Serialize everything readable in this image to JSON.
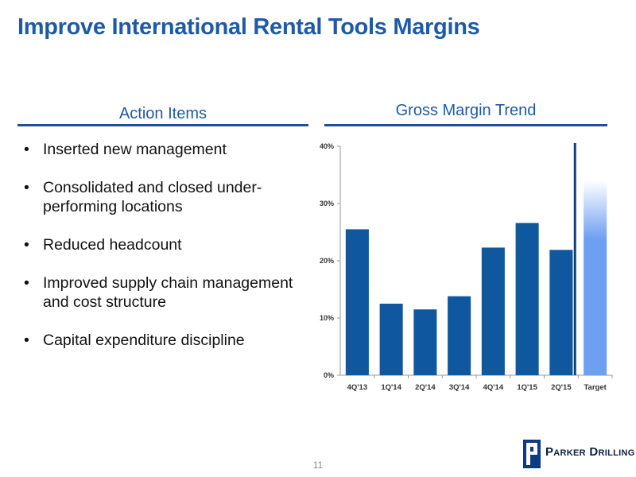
{
  "slide": {
    "title": "Improve International Rental Tools Margins",
    "page_number": "11"
  },
  "action_items": {
    "heading": "Action Items",
    "items": [
      "Inserted new management",
      "Consolidated and closed under-performing locations",
      "Reduced headcount",
      "Improved supply chain management and cost structure",
      "Capital expenditure discipline"
    ]
  },
  "gross_margin": {
    "heading": "Gross Margin Trend"
  },
  "logo": {
    "text": "Parker Drilling"
  },
  "colors": {
    "title": "#1f5aa6",
    "rule": "#1f4f8f",
    "bar": "#0f58a0",
    "target_bar": "#6f9ff0",
    "divider": "#123f78"
  },
  "chart_data": {
    "type": "bar",
    "title": "Gross Margin Trend",
    "categories": [
      "4Q'13",
      "1Q'14",
      "2Q'14",
      "3Q'14",
      "4Q'14",
      "1Q'15",
      "2Q'15",
      "Target"
    ],
    "values": [
      25.5,
      12.5,
      11.5,
      13.8,
      22.3,
      26.6,
      21.9,
      34.0
    ],
    "target_range": [
      30,
      34
    ],
    "ylim": [
      0,
      40
    ],
    "yticks": [
      "0%",
      "10%",
      "20%",
      "30%",
      "40%"
    ],
    "xlabel": "",
    "ylabel": "",
    "grid": false,
    "legend": "none"
  }
}
